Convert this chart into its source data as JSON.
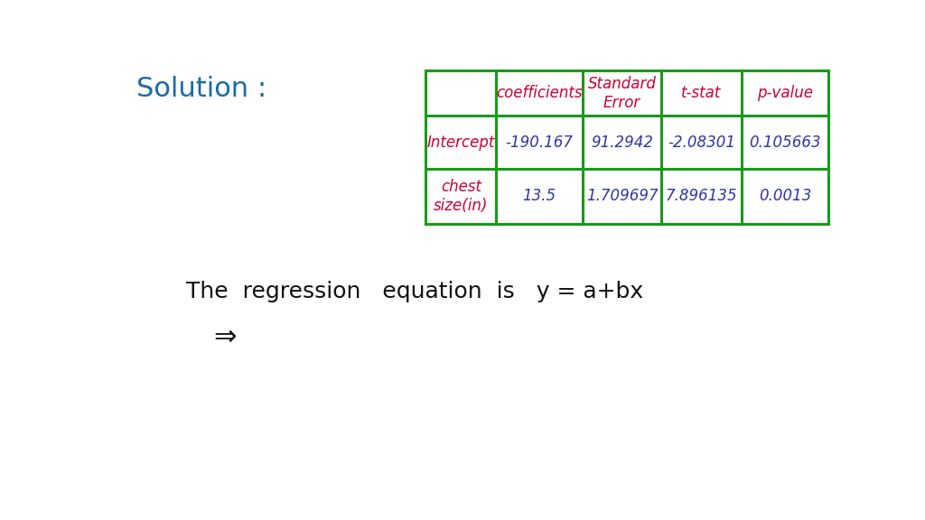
{
  "background_color": "#ffffff",
  "solution_label": "Solution :",
  "solution_color": "#1a6aaa",
  "table_border_color": "#1a9a1a",
  "header_text_color": "#cc0033",
  "data_text_color": "#3333aa",
  "row_label_color": "#cc0033",
  "col_headers": [
    "coefficients",
    "Standard\nError",
    "t-stat",
    "p-value"
  ],
  "row_labels": [
    "Intercept",
    "chest\nsize(in)"
  ],
  "data": [
    [
      "-190.167",
      "91.2942",
      "-2.08301",
      "0.105663"
    ],
    [
      "13.5",
      "1.709697",
      "7.896135",
      "0.0013"
    ]
  ],
  "bottom_text1": "The  regression   equation  is   y = a+bx",
  "bottom_text2": "⇒"
}
